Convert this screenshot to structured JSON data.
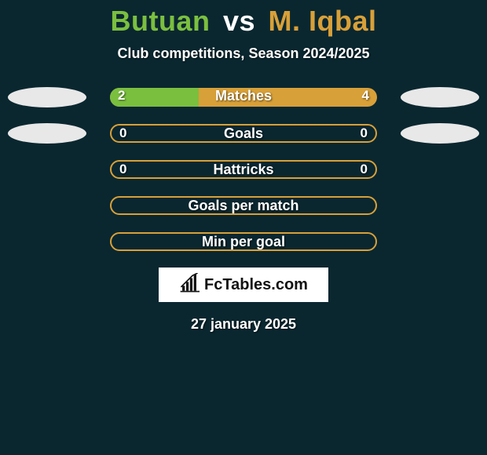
{
  "background_color": "#0a2730",
  "title": {
    "player1": "Butuan",
    "vs": "vs",
    "player2": "M. Iqbal",
    "player1_color": "#7bbf3f",
    "vs_color": "#ffffff",
    "player2_color": "#d8a038",
    "fontsize": 36
  },
  "subtitle": {
    "text": "Club competitions, Season 2024/2025",
    "fontsize": 18,
    "color": "#ffffff"
  },
  "bar_geometry": {
    "track_width": 340,
    "track_height": 24,
    "border_radius": 12,
    "row_gap": 20
  },
  "colors": {
    "left_fill": "#7bbf3f",
    "right_fill": "#d8a038",
    "empty_border": "#d8a038",
    "badge_bg": "#e8e8e8",
    "label_text": "#ffffff",
    "label_shadow": "rgba(0,0,0,0.6)"
  },
  "rows": [
    {
      "key": "matches",
      "label": "Matches",
      "left_val": "2",
      "right_val": "4",
      "left_num": 2,
      "right_num": 4,
      "left_pct": 33.3,
      "right_pct": 66.7,
      "show_left_badge": true,
      "show_right_badge": true,
      "style": "split"
    },
    {
      "key": "goals",
      "label": "Goals",
      "left_val": "0",
      "right_val": "0",
      "left_num": 0,
      "right_num": 0,
      "left_pct": 0,
      "right_pct": 0,
      "show_left_badge": true,
      "show_right_badge": true,
      "style": "empty"
    },
    {
      "key": "hattricks",
      "label": "Hattricks",
      "left_val": "0",
      "right_val": "0",
      "left_num": 0,
      "right_num": 0,
      "left_pct": 0,
      "right_pct": 0,
      "show_left_badge": false,
      "show_right_badge": false,
      "style": "empty"
    },
    {
      "key": "gpm",
      "label": "Goals per match",
      "left_val": "",
      "right_val": "",
      "left_num": 0,
      "right_num": 0,
      "left_pct": 0,
      "right_pct": 0,
      "show_left_badge": false,
      "show_right_badge": false,
      "style": "empty"
    },
    {
      "key": "mpg",
      "label": "Min per goal",
      "left_val": "",
      "right_val": "",
      "left_num": 0,
      "right_num": 0,
      "left_pct": 0,
      "right_pct": 0,
      "show_left_badge": false,
      "show_right_badge": false,
      "style": "empty"
    }
  ],
  "logo": {
    "text": "FcTables.com",
    "box_bg": "#ffffff",
    "text_color": "#111111",
    "icon_color": "#111111"
  },
  "date": {
    "text": "27 january 2025",
    "fontsize": 18,
    "color": "#ffffff"
  }
}
